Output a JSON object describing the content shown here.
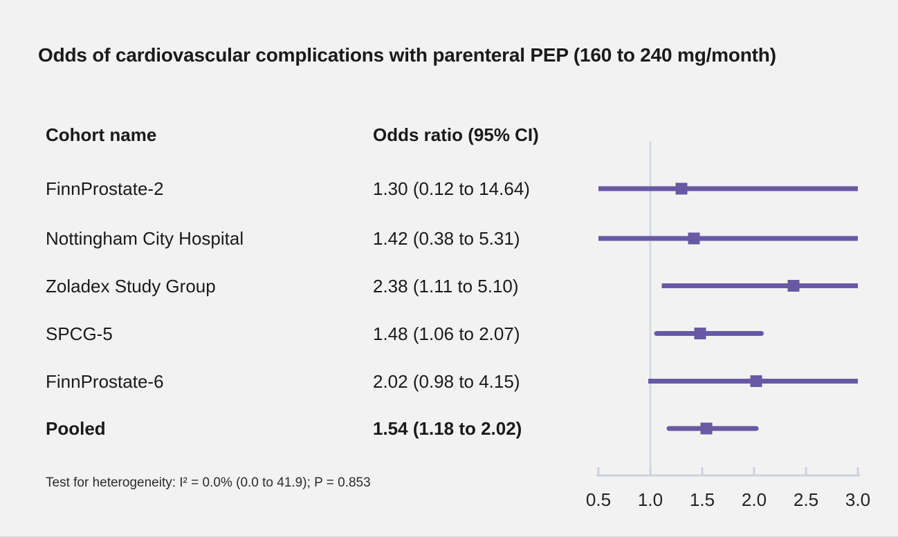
{
  "title": "Odds of cardiovascular complications with parenteral PEP (160 to 240 mg/month)",
  "columns": {
    "cohort": "Cohort name",
    "odds": "Odds ratio (95% CI)"
  },
  "footnote": "Test for heterogeneity: I² = 0.0% (0.0 to 41.9); P = 0.853",
  "colors": {
    "background": "#f2f2f2",
    "text": "#1a1a1a",
    "marker": "#6859a5",
    "axis_line": "#cdd2dc",
    "null_line": "#d6dae2"
  },
  "chart_data": {
    "type": "forest",
    "title": "Odds of cardiovascular complications with parenteral PEP (160 to 240 mg/month)",
    "x_ticks": [
      "0.5",
      "1.0",
      "1.5",
      "2.0",
      "2.5",
      "3.0"
    ],
    "x_tick_values": [
      0.5,
      1.0,
      1.5,
      2.0,
      2.5,
      3.0
    ],
    "xlim": [
      0.5,
      3.0
    ],
    "null_value": 1.0,
    "legend_position": "none",
    "grid": false,
    "rows": [
      {
        "label": "FinnProstate-2",
        "value_text": "1.30 (0.12 to 14.64)",
        "or": 1.3,
        "lo": 0.12,
        "hi": 14.64,
        "bold": false
      },
      {
        "label": "Nottingham City Hospital",
        "value_text": "1.42 (0.38 to 5.31)",
        "or": 1.42,
        "lo": 0.38,
        "hi": 5.31,
        "bold": false
      },
      {
        "label": "Zoladex Study Group",
        "value_text": "2.38 (1.11 to 5.10)",
        "or": 2.38,
        "lo": 1.11,
        "hi": 5.1,
        "bold": false
      },
      {
        "label": "SPCG-5",
        "value_text": "1.48 (1.06 to 2.07)",
        "or": 1.48,
        "lo": 1.06,
        "hi": 2.07,
        "bold": false
      },
      {
        "label": "FinnProstate-6",
        "value_text": "2.02 (0.98 to 4.15)",
        "or": 2.02,
        "lo": 0.98,
        "hi": 4.15,
        "bold": false
      },
      {
        "label": "Pooled",
        "value_text": "1.54 (1.18 to 2.02)",
        "or": 1.54,
        "lo": 1.18,
        "hi": 2.02,
        "bold": true
      }
    ]
  }
}
